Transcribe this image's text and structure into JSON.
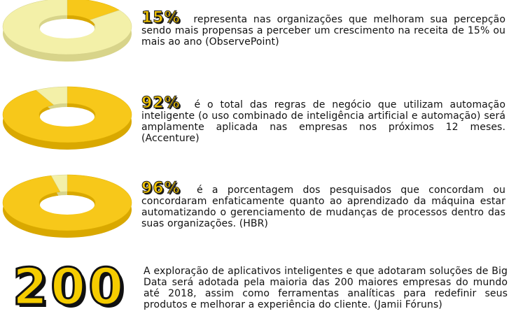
{
  "stats": [
    {
      "percent": "15%",
      "fill_fraction": 0.15,
      "text": "representa nas organizações que melhoram sua percepção sendo mais propensas a perceber um crescimento na receita de 15% ou mais ao ano (ObservePoint)"
    },
    {
      "percent": "92%",
      "fill_fraction": 0.92,
      "text": "é o total das regras de negócio que utilizam automação inteligente (o uso combinado de inteligência artificial e automação) será amplamente aplicada nas empresas nos próximos 12 meses. (Accenture)"
    },
    {
      "percent": "96%",
      "fill_fraction": 0.96,
      "text": "é a porcentagem dos pesquisados que concordam ou concordaram enfaticamente quanto ao aprendizado da máquina estar automatizando o gerenciamento de mudanças de processos dentro das suas organizações. (HBR)"
    }
  ],
  "highlight": {
    "number": "200",
    "text": "A exploração de aplicativos inteligentes e que adotaram soluções de Big Data será adotada pela maioria das 200 maiores empresas do mundo até 2018, assim como ferramentas analíticas para redefinir seus produtos e melhorar a experiência do cliente. (Jamii Fóruns)"
  },
  "colors": {
    "filled": "#f7c81a",
    "filled_dark": "#d9a800",
    "empty": "#f3f0a8",
    "empty_dark": "#d8d48a"
  }
}
